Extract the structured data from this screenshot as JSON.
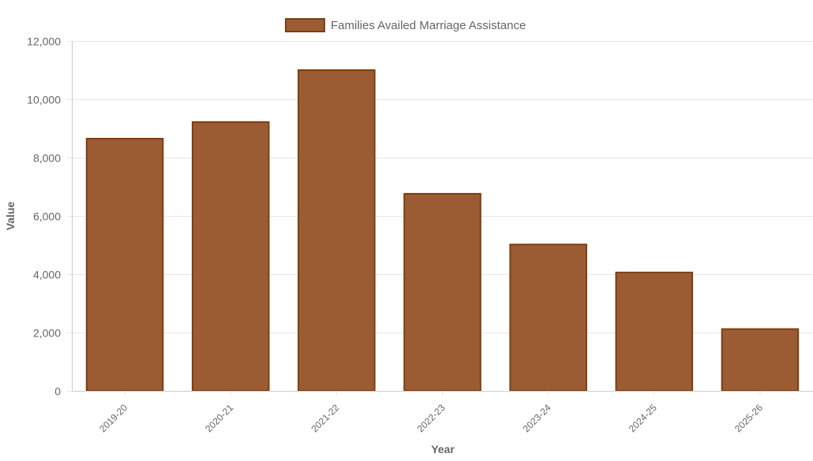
{
  "chart_data": {
    "type": "bar",
    "title": "",
    "xlabel": "Year",
    "ylabel": "Value",
    "categories": [
      "2019-20",
      "2020-21",
      "2021-22",
      "2022-23",
      "2023-24",
      "2024-25",
      "2025-26"
    ],
    "series": [
      {
        "name": "Families Availed Marriage Assistance",
        "values": [
          8650,
          9220,
          11000,
          6760,
          5020,
          4060,
          2120
        ]
      }
    ],
    "ylim": [
      0,
      12000
    ],
    "yticks": [
      0,
      2000,
      4000,
      6000,
      8000,
      10000,
      12000
    ],
    "ytick_labels": [
      "0",
      "2,000",
      "4,000",
      "6,000",
      "8,000",
      "10,000",
      "12,000"
    ],
    "grid": true,
    "legend": "top-center",
    "colors": {
      "bar_fill": "#9b5c33",
      "bar_border": "#7a3f12",
      "grid": "#e6e6e6",
      "axis": "#cccccc",
      "text": "#666666"
    }
  }
}
